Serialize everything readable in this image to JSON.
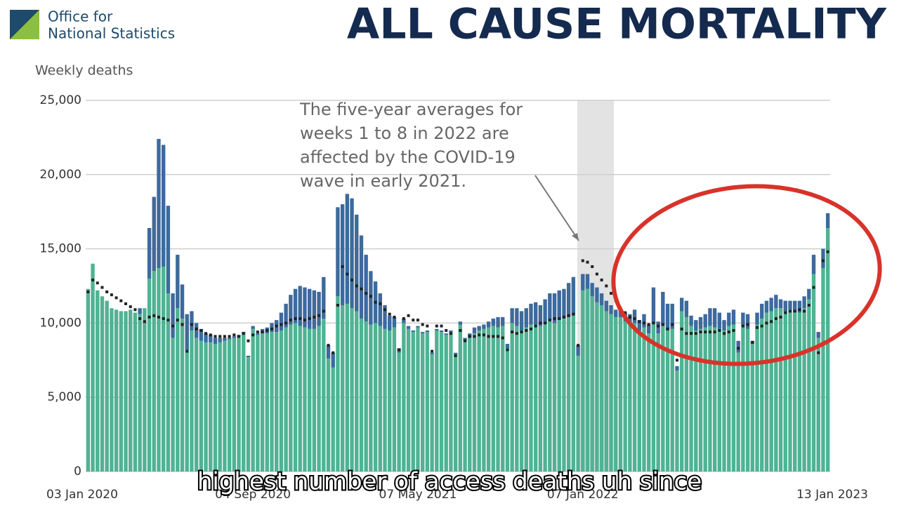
{
  "logo": {
    "line1": "Office for",
    "line2": "National Statistics"
  },
  "headline": "ALL CAUSE MORTALITY",
  "caption": "highest number of access deaths uh since",
  "chart_data": {
    "type": "stacked_bar",
    "y_label": "Weekly deaths",
    "annotation": "The five-year averages for weeks 1 to 8 in 2022 are affected by the COVID-19 wave in early 2021.",
    "annotation_lines": [
      "The five-year averages for",
      "weeks 1 to 8 in 2022 are",
      "affected by the COVID-19",
      "wave in early 2021."
    ],
    "categories": [
      "03 Jan 2020",
      null,
      null,
      null,
      null,
      null,
      null,
      null,
      null,
      null,
      null,
      null,
      null,
      null,
      null,
      null,
      null,
      null,
      null,
      null,
      null,
      null,
      null,
      null,
      null,
      null,
      null,
      null,
      null,
      null,
      null,
      null,
      null,
      null,
      null,
      "04 Sep 2020",
      null,
      null,
      null,
      null,
      null,
      null,
      null,
      null,
      null,
      null,
      null,
      null,
      null,
      null,
      null,
      null,
      null,
      null,
      null,
      null,
      null,
      null,
      null,
      null,
      null,
      null,
      null,
      null,
      null,
      null,
      null,
      null,
      null,
      null,
      "07 May 2021",
      null,
      null,
      null,
      null,
      null,
      null,
      null,
      null,
      null,
      null,
      null,
      null,
      null,
      null,
      null,
      null,
      null,
      null,
      null,
      null,
      null,
      null,
      null,
      null,
      null,
      null,
      null,
      null,
      null,
      null,
      null,
      null,
      null,
      null,
      "07 Jan 2022",
      null,
      null,
      null,
      null,
      null,
      null,
      null,
      null,
      null,
      null,
      null,
      null,
      null,
      null,
      null,
      null,
      null,
      null,
      null,
      null,
      null,
      null,
      null,
      null,
      null,
      null,
      null,
      null,
      null,
      null,
      null,
      null,
      null,
      null,
      null,
      null,
      null,
      null,
      null,
      null,
      null,
      null,
      null,
      null,
      null,
      null,
      null,
      null,
      null,
      null,
      null,
      "13 Jan 2023"
    ],
    "series": [
      {
        "color": "#4fb393",
        "values": [
          12300,
          14000,
          12200,
          11800,
          11500,
          11000,
          10900,
          10800,
          10800,
          10900,
          10700,
          10600,
          11000,
          13000,
          13500,
          13700,
          13800,
          12000,
          9000,
          11000,
          10300,
          8200,
          9500,
          9000,
          8800,
          8700,
          8700,
          8600,
          8700,
          8800,
          8900,
          9000,
          9100,
          9300,
          7700,
          9600,
          9200,
          9300,
          9300,
          9400,
          9400,
          9500,
          9700,
          9900,
          10000,
          9800,
          9700,
          9600,
          9600,
          9800,
          10300,
          7600,
          7000,
          11800,
          11200,
          11300,
          11000,
          10800,
          10300,
          10100,
          9900,
          10000,
          9800,
          9600,
          9500,
          9700,
          8000,
          10000,
          9600,
          9400,
          9700,
          9300,
          9400,
          7900,
          9500,
          9400,
          9200,
          9400,
          7900,
          9900,
          8800,
          9000,
          9300,
          9500,
          9600,
          9700,
          9800,
          9700,
          9800,
          8300,
          10000,
          9800,
          9500,
          9700,
          9900,
          9900,
          9800,
          10000,
          10200,
          10000,
          10200,
          10300,
          10400,
          10500,
          7800,
          12200,
          12300,
          11800,
          11400,
          11200,
          10800,
          10600,
          10400,
          10400,
          10100,
          9900,
          10000,
          9500,
          9700,
          9300,
          10000,
          9300,
          9800,
          9500,
          9600,
          6800,
          10800,
          10400,
          9800,
          9500,
          9600,
          9700,
          9800,
          9700,
          9600,
          9500,
          9800,
          9900,
          8000,
          9800,
          9600,
          8600,
          9900,
          10300,
          10700,
          10800,
          11000,
          11000,
          10800,
          10900,
          10700,
          10700,
          11000,
          11600,
          13300,
          9000,
          13700,
          16400
        ]
      },
      {
        "color": "#3d6a9c",
        "values": [
          0,
          0,
          0,
          0,
          0,
          0,
          0,
          0,
          0,
          0,
          0,
          400,
          0,
          3400,
          5000,
          8700,
          8200,
          5900,
          3000,
          3600,
          2300,
          2400,
          1300,
          1000,
          800,
          600,
          500,
          400,
          300,
          200,
          100,
          100,
          100,
          100,
          100,
          200,
          100,
          300,
          400,
          600,
          800,
          1200,
          1600,
          2000,
          2300,
          2700,
          2700,
          2700,
          2600,
          2300,
          2800,
          900,
          1000,
          6000,
          6800,
          7400,
          7400,
          6500,
          5600,
          4500,
          3600,
          2800,
          2200,
          1600,
          1000,
          700,
          300,
          300,
          200,
          100,
          100,
          100,
          100,
          100,
          100,
          100,
          100,
          100,
          100,
          200,
          200,
          300,
          400,
          300,
          300,
          400,
          500,
          700,
          600,
          300,
          1000,
          1200,
          1300,
          1300,
          1400,
          1500,
          1400,
          1600,
          1800,
          2000,
          2000,
          2000,
          2300,
          2600,
          700,
          1100,
          1000,
          900,
          1000,
          800,
          700,
          600,
          500,
          600,
          600,
          700,
          900,
          700,
          900,
          600,
          2400,
          800,
          2300,
          1800,
          1700,
          300,
          900,
          1100,
          700,
          700,
          800,
          900,
          1200,
          1300,
          1100,
          700,
          900,
          1000,
          800,
          900,
          1000,
          200,
          800,
          1000,
          800,
          900,
          900,
          600,
          700,
          600,
          800,
          800,
          800,
          700,
          1300,
          400,
          1300,
          1000
        ]
      }
    ],
    "average": {
      "color": "#222222",
      "values": [
        12100,
        12900,
        12700,
        12400,
        12100,
        11900,
        11700,
        11500,
        11300,
        11100,
        10900,
        10300,
        10100,
        10400,
        10500,
        10400,
        10300,
        10200,
        9800,
        10200,
        9900,
        8100,
        9900,
        9600,
        9500,
        9300,
        9200,
        9100,
        9100,
        9100,
        9100,
        9200,
        9100,
        9300,
        8800,
        9200,
        9400,
        9400,
        9500,
        9600,
        9800,
        9900,
        10000,
        10200,
        10300,
        10300,
        10200,
        10300,
        10400,
        10500,
        10800,
        8500,
        8000,
        11200,
        13800,
        13300,
        12900,
        12500,
        12300,
        12000,
        11800,
        11400,
        11300,
        10900,
        10600,
        10400,
        8200,
        10300,
        10500,
        10200,
        10200,
        9900,
        9800,
        8100,
        9800,
        9800,
        9500,
        9300,
        7800,
        9500,
        8800,
        9100,
        9100,
        9200,
        9200,
        9100,
        9100,
        9100,
        9000,
        8200,
        9400,
        9300,
        9400,
        9500,
        9600,
        9800,
        10000,
        10000,
        10200,
        10300,
        10300,
        10400,
        10500,
        10600,
        8500,
        14200,
        14100,
        13800,
        13300,
        12900,
        12500,
        12000,
        11500,
        11000,
        10700,
        10400,
        10300,
        10100,
        10000,
        9900,
        10000,
        9800,
        9900,
        9600,
        9900,
        7500,
        9600,
        9300,
        9300,
        9300,
        9400,
        9400,
        9400,
        9400,
        9500,
        9300,
        9400,
        9500,
        8300,
        9800,
        9900,
        8700,
        9700,
        9800,
        10000,
        10100,
        10300,
        10400,
        10700,
        10800,
        10800,
        10900,
        10800,
        11200,
        12400,
        8000,
        14200,
        14800
      ]
    },
    "ylim": [
      0,
      25000
    ],
    "yticks": [
      0,
      {
        "value": 5000,
        "label": "5,000"
      },
      {
        "value": 10000,
        "label": "10,000"
      },
      {
        "value": 15000,
        "label": "15,000"
      },
      {
        "value": 20000,
        "label": "20,000"
      },
      {
        "value": 25000,
        "label": "25,000"
      }
    ],
    "grid": true
  }
}
